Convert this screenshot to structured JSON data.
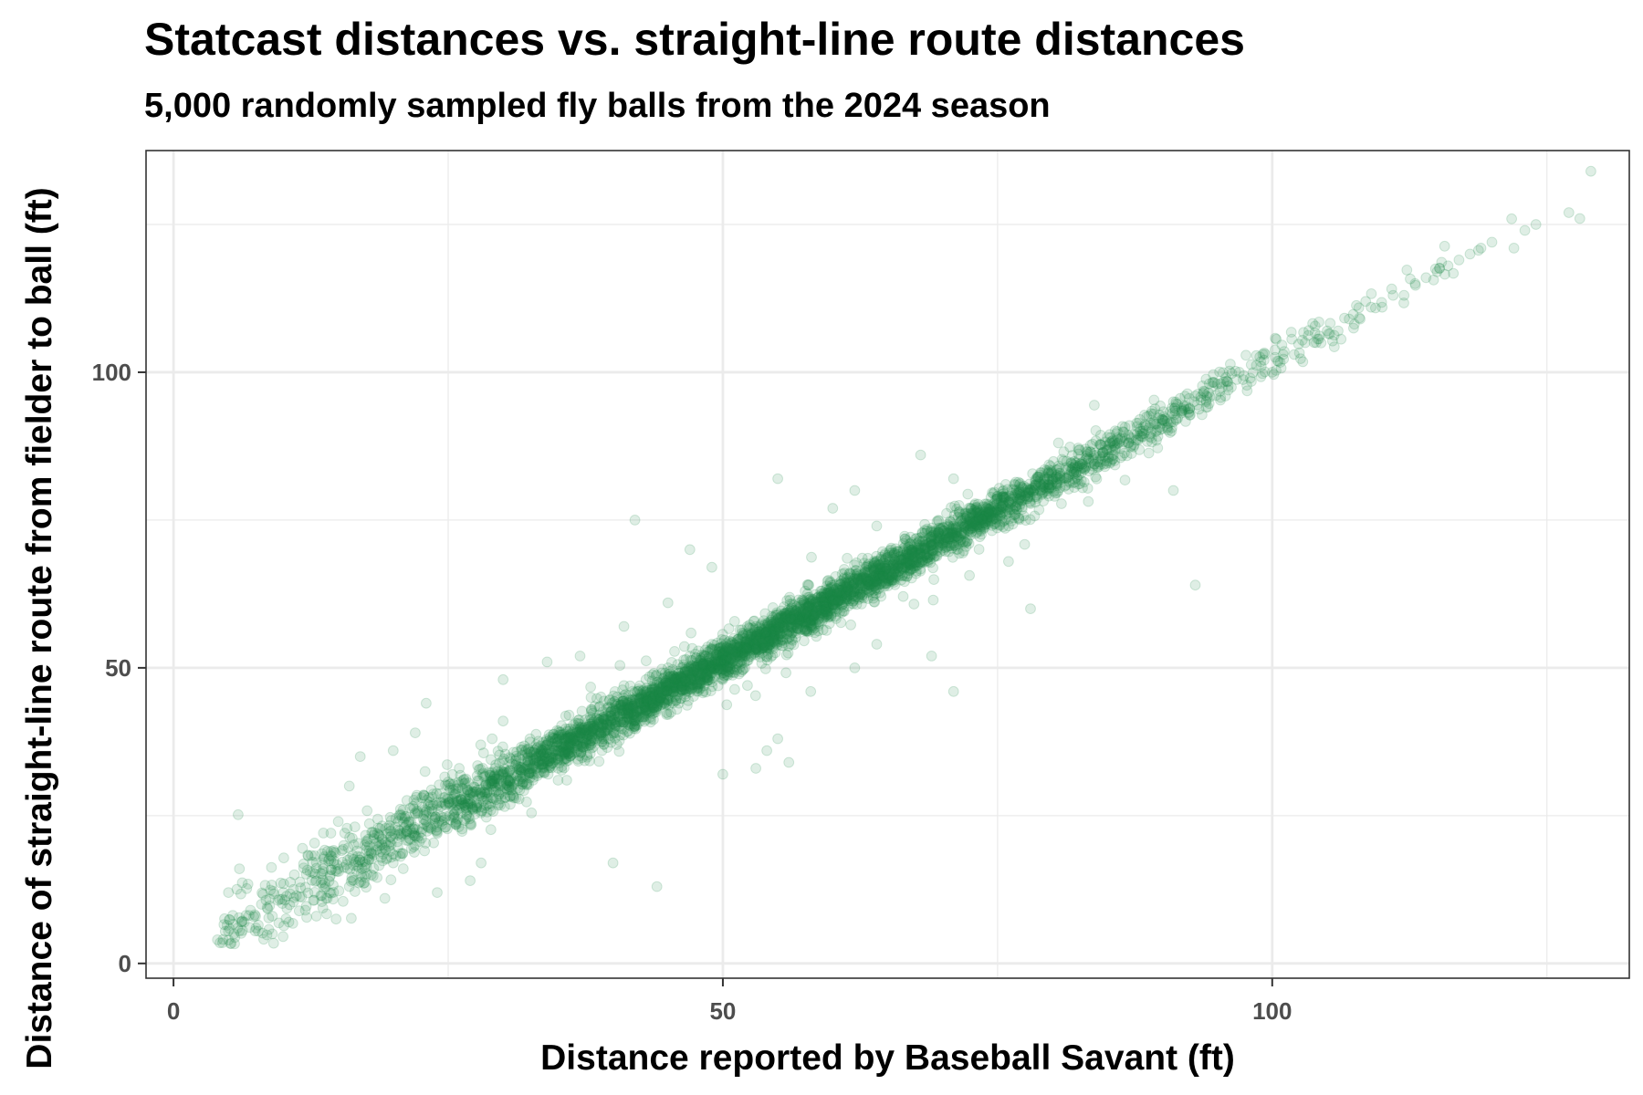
{
  "chart_data": {
    "type": "scatter",
    "title": "Statcast distances vs. straight-line route distances",
    "subtitle": "5,000 randomly sampled fly balls from the 2024 season",
    "xlabel": "Distance reported by Baseball Savant (ft)",
    "ylabel": "Distance of straight-line route from fielder to ball (ft)",
    "xlim": [
      -2.5,
      132.5
    ],
    "ylim": [
      -2.5,
      137.5
    ],
    "x_ticks": [
      0,
      50,
      100
    ],
    "x_tick_labels": [
      "0",
      "50",
      "100"
    ],
    "y_ticks": [
      0,
      50,
      100
    ],
    "y_tick_labels": [
      "0",
      "50",
      "100"
    ],
    "grid": true,
    "legend": "none",
    "colors": {
      "point": "#1a8a48",
      "grid": "#ebebeb",
      "border": "#333333"
    },
    "point_alpha": 0.14,
    "n_points": 5000,
    "points": [
      [
        4,
        4
      ],
      [
        5.5,
        5
      ],
      [
        6,
        5.5
      ],
      [
        7,
        9
      ],
      [
        7.5,
        6
      ],
      [
        8,
        10
      ],
      [
        9,
        8
      ],
      [
        10,
        12
      ],
      [
        10.5,
        7
      ],
      [
        11,
        15
      ],
      [
        12,
        9
      ],
      [
        13,
        14
      ],
      [
        14,
        11
      ],
      [
        15,
        16
      ],
      [
        16,
        13
      ],
      [
        17,
        18
      ],
      [
        18,
        15
      ],
      [
        19,
        21
      ],
      [
        20,
        17
      ],
      [
        21,
        23
      ],
      [
        22,
        20
      ],
      [
        23,
        25
      ],
      [
        24,
        22
      ],
      [
        25,
        27
      ],
      [
        5,
        12
      ],
      [
        6,
        16
      ],
      [
        9,
        5
      ],
      [
        13,
        8
      ],
      [
        15,
        24
      ],
      [
        16,
        30
      ],
      [
        17,
        35
      ],
      [
        20,
        36
      ],
      [
        22,
        39
      ],
      [
        23,
        44
      ],
      [
        24,
        12
      ],
      [
        27,
        14
      ],
      [
        28,
        17
      ],
      [
        26,
        33
      ],
      [
        29,
        38
      ],
      [
        30,
        41
      ],
      [
        31,
        28
      ],
      [
        32,
        33
      ],
      [
        34,
        37
      ],
      [
        35,
        31
      ],
      [
        36,
        42
      ],
      [
        37,
        39
      ],
      [
        38,
        45
      ],
      [
        39,
        36
      ],
      [
        40,
        43
      ],
      [
        41,
        47
      ],
      [
        42,
        40
      ],
      [
        43,
        48
      ],
      [
        44,
        46
      ],
      [
        45,
        50
      ],
      [
        46,
        44
      ],
      [
        47,
        52
      ],
      [
        48,
        49
      ],
      [
        49,
        54
      ],
      [
        50,
        51
      ],
      [
        51,
        55
      ],
      [
        52,
        50
      ],
      [
        53,
        57
      ],
      [
        54,
        53
      ],
      [
        55,
        59
      ],
      [
        56,
        55
      ],
      [
        57,
        61
      ],
      [
        58,
        58
      ],
      [
        59,
        63
      ],
      [
        60,
        60
      ],
      [
        61,
        65
      ],
      [
        62,
        63
      ],
      [
        63,
        67
      ],
      [
        64,
        65
      ],
      [
        65,
        69
      ],
      [
        66,
        68
      ],
      [
        67,
        71
      ],
      [
        68,
        70
      ],
      [
        69,
        73
      ],
      [
        70,
        72
      ],
      [
        71,
        75
      ],
      [
        72,
        74
      ],
      [
        73,
        77
      ],
      [
        74,
        76
      ],
      [
        75,
        79
      ],
      [
        76,
        78
      ],
      [
        77,
        81
      ],
      [
        78,
        80
      ],
      [
        79,
        83
      ],
      [
        80,
        82
      ],
      [
        81,
        85
      ],
      [
        82,
        84
      ],
      [
        83,
        87
      ],
      [
        84,
        86
      ],
      [
        85,
        89
      ],
      [
        86,
        88
      ],
      [
        87,
        91
      ],
      [
        88,
        90
      ],
      [
        89,
        93
      ],
      [
        90,
        92
      ],
      [
        91,
        95
      ],
      [
        92,
        94
      ],
      [
        93,
        96
      ],
      [
        94,
        95
      ],
      [
        95,
        98
      ],
      [
        96,
        97
      ],
      [
        97,
        100
      ],
      [
        98,
        99
      ],
      [
        99,
        101
      ],
      [
        100,
        100
      ],
      [
        101,
        103
      ],
      [
        102,
        103
      ],
      [
        103,
        105
      ],
      [
        104,
        105
      ],
      [
        105,
        107
      ],
      [
        106,
        107
      ],
      [
        107,
        109
      ],
      [
        108,
        109
      ],
      [
        109,
        111
      ],
      [
        110,
        111
      ],
      [
        111,
        113
      ],
      [
        112,
        113
      ],
      [
        113,
        115
      ],
      [
        114,
        116
      ],
      [
        115,
        117
      ],
      [
        116,
        118
      ],
      [
        117,
        119
      ],
      [
        118,
        120
      ],
      [
        119,
        121
      ],
      [
        120,
        122
      ],
      [
        122,
        121
      ],
      [
        123,
        124
      ],
      [
        124,
        125
      ],
      [
        127,
        127
      ],
      [
        128,
        126
      ],
      [
        129,
        134
      ],
      [
        42,
        75
      ],
      [
        55,
        82
      ],
      [
        40,
        17
      ],
      [
        44,
        13
      ],
      [
        50,
        32
      ],
      [
        53,
        33
      ],
      [
        54,
        36
      ],
      [
        55,
        38
      ],
      [
        56,
        34
      ],
      [
        58,
        46
      ],
      [
        62,
        50
      ],
      [
        64,
        54
      ],
      [
        69,
        52
      ],
      [
        71,
        46
      ],
      [
        78,
        60
      ],
      [
        93,
        64
      ],
      [
        91,
        80
      ],
      [
        62,
        80
      ],
      [
        68,
        86
      ],
      [
        76,
        68
      ],
      [
        30,
        48
      ],
      [
        34,
        51
      ],
      [
        37,
        52
      ],
      [
        41,
        57
      ],
      [
        45,
        61
      ],
      [
        49,
        67
      ],
      [
        47,
        70
      ],
      [
        60,
        77
      ],
      [
        64,
        74
      ],
      [
        71,
        82
      ]
    ]
  }
}
